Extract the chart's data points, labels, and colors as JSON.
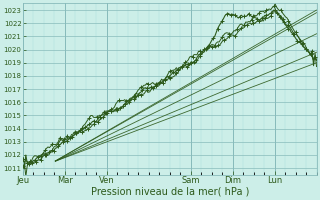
{
  "title": "",
  "xlabel": "Pression niveau de la mer( hPa )",
  "bg_color": "#cceee8",
  "grid_major_color": "#88bbbb",
  "grid_minor_color": "#aadddd",
  "line_color": "#2d5a1b",
  "ylim": [
    1010.5,
    1023.5
  ],
  "ytick_min": 1011,
  "ytick_max": 1023,
  "day_labels": [
    "Jeu",
    "Mar",
    "Ven",
    "Sam",
    "Dim",
    "Lun"
  ],
  "day_hour_positions": [
    0,
    24,
    48,
    96,
    120,
    144
  ],
  "total_hours": 168,
  "xlabel_fontsize": 7,
  "ytick_fontsize": 5,
  "xtick_fontsize": 6
}
